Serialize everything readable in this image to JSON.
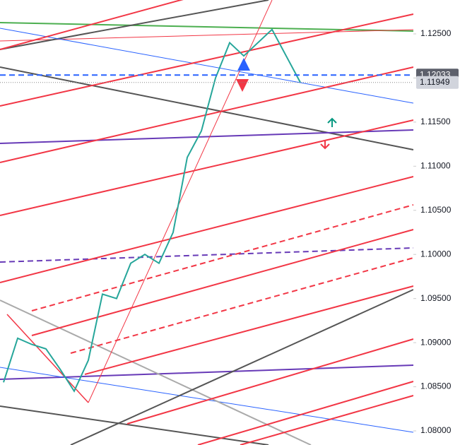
{
  "chart_data": {
    "type": "line",
    "categories": [
      null,
      null,
      null,
      null,
      null,
      null,
      null,
      null,
      null,
      null,
      null,
      null,
      null,
      null,
      null,
      null,
      null,
      null,
      null,
      null,
      null,
      null
    ],
    "series": [
      {
        "color": "#26a69a",
        "values": [
          1.0855,
          1.0905,
          1.0898,
          1.0893,
          1.087,
          1.0845,
          1.088,
          1.0955,
          1.095,
          1.099,
          1.1,
          1.099,
          1.1025,
          1.111,
          1.114,
          1.12,
          1.124,
          1.1225,
          1.124,
          1.1255,
          1.1225,
          1.1195
        ]
      }
    ],
    "ylim": [
      1.0784,
      1.12884
    ],
    "yticks": [
      {
        "value": 1.08,
        "label": "1.08000"
      },
      {
        "value": 1.085,
        "label": "1.08500"
      },
      {
        "value": 1.09,
        "label": "1.09000"
      },
      {
        "value": 1.095,
        "label": "1.09500"
      },
      {
        "value": 1.1,
        "label": "1.10000"
      },
      {
        "value": 1.105,
        "label": "1.10500"
      },
      {
        "value": 1.11,
        "label": "1.11000"
      },
      {
        "value": 1.115,
        "label": "1.11500"
      },
      {
        "value": 1.12,
        "label": "1.12000"
      },
      {
        "value": 1.125,
        "label": "1.12500"
      }
    ],
    "price_labels": [
      {
        "value": 1.12033,
        "color": "#5d606b"
      },
      {
        "value": 1.11949,
        "color": "#d1d4dc"
      }
    ]
  }
}
